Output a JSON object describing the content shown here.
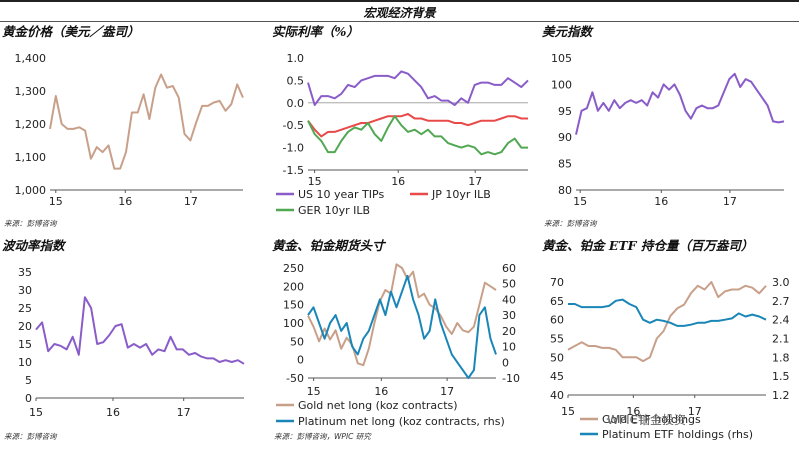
{
  "header": {
    "title": "宏观经济背景"
  },
  "watermark": "WPIC铂金投资",
  "chart_data": [
    {
      "id": "gold",
      "type": "line",
      "title": "黄金价格（美元／盎司）",
      "source": "来源：彭博咨询",
      "x_ticks": [
        "15",
        "16",
        "17"
      ],
      "ylim": [
        1000,
        1400
      ],
      "y_ticks": [
        "1,000",
        "1,100",
        "1,200",
        "1,300",
        "1,400"
      ],
      "y_tick_values": [
        1000,
        1100,
        1200,
        1300,
        1400
      ],
      "colors": [
        "#c8a08a"
      ],
      "series": [
        {
          "values": [
            1185,
            1285,
            1200,
            1185,
            1185,
            1190,
            1180,
            1095,
            1130,
            1115,
            1135,
            1065,
            1065,
            1115,
            1235,
            1235,
            1290,
            1215,
            1310,
            1350,
            1310,
            1315,
            1280,
            1170,
            1150,
            1205,
            1255,
            1255,
            1265,
            1270,
            1240,
            1260,
            1320,
            1280
          ]
        }
      ]
    },
    {
      "id": "rates",
      "type": "line",
      "title": "实际利率（%）",
      "ylim": [
        -1.5,
        1.0
      ],
      "x_ticks": [
        "15",
        "16",
        "17"
      ],
      "y_ticks": [
        "1.0",
        "0.5",
        "0.0",
        "-0.5",
        "-1.0",
        "-1.5"
      ],
      "y_tick_values": [
        1.0,
        0.5,
        0.0,
        -0.5,
        -1.0,
        -1.5
      ],
      "colors": [
        "#8a5cc8",
        "#e84a4a",
        "#52a852"
      ],
      "series": [
        {
          "name": "US 10 year TIPs",
          "values": [
            0.45,
            -0.05,
            0.15,
            0.15,
            0.1,
            0.2,
            0.4,
            0.35,
            0.5,
            0.55,
            0.6,
            0.6,
            0.6,
            0.55,
            0.7,
            0.65,
            0.5,
            0.35,
            0.1,
            0.15,
            0.05,
            0.05,
            -0.05,
            0.1,
            0.0,
            0.4,
            0.45,
            0.45,
            0.4,
            0.4,
            0.55,
            0.45,
            0.35,
            0.5
          ]
        },
        {
          "name": "JP 10yr ILB",
          "values": [
            -0.4,
            -0.6,
            -0.75,
            -0.65,
            -0.65,
            -0.6,
            -0.55,
            -0.5,
            -0.45,
            -0.45,
            -0.4,
            -0.35,
            -0.3,
            -0.3,
            -0.3,
            -0.25,
            -0.35,
            -0.35,
            -0.4,
            -0.4,
            -0.4,
            -0.4,
            -0.45,
            -0.45,
            -0.5,
            -0.45,
            -0.4,
            -0.4,
            -0.4,
            -0.35,
            -0.3,
            -0.3,
            -0.35,
            -0.35
          ]
        },
        {
          "name": "GER 10yr ILB",
          "values": [
            -0.4,
            -0.7,
            -0.85,
            -1.1,
            -1.1,
            -0.85,
            -0.65,
            -0.55,
            -0.6,
            -0.45,
            -0.7,
            -0.85,
            -0.55,
            -0.3,
            -0.5,
            -0.65,
            -0.6,
            -0.7,
            -0.6,
            -0.75,
            -0.75,
            -0.9,
            -0.95,
            -1.0,
            -0.95,
            -1.0,
            -1.15,
            -1.1,
            -1.15,
            -1.1,
            -0.9,
            -0.8,
            -1.0,
            -1.0
          ]
        }
      ]
    },
    {
      "id": "dxy",
      "type": "line",
      "title": "美元指数",
      "source": "来源：彭博咨询",
      "ylim": [
        80,
        105
      ],
      "x_ticks": [
        "15",
        "16",
        "17"
      ],
      "y_ticks": [
        "105",
        "100",
        "95",
        "90",
        "85",
        "80"
      ],
      "y_tick_values": [
        105,
        100,
        95,
        90,
        85,
        80
      ],
      "colors": [
        "#8a5cc8"
      ],
      "series": [
        {
          "values": [
            90.5,
            95.0,
            95.5,
            98.5,
            95.0,
            96.5,
            95.0,
            97.0,
            95.5,
            96.5,
            97.0,
            96.5,
            97.0,
            96.0,
            98.5,
            97.5,
            100.0,
            99.0,
            100.0,
            98.0,
            95.0,
            93.5,
            95.5,
            96.0,
            95.5,
            95.5,
            96.0,
            98.5,
            101.0,
            102.0,
            99.5,
            101.0,
            100.5,
            99.0,
            97.5,
            96.0,
            93.0,
            92.8,
            93.0
          ]
        }
      ]
    },
    {
      "id": "vol",
      "type": "line",
      "title": "波动率指数",
      "source": "来源：彭博咨询",
      "ylim": [
        0,
        35
      ],
      "x_ticks": [
        "15",
        "16",
        "17"
      ],
      "y_ticks": [
        "35",
        "30",
        "25",
        "20",
        "15",
        "10",
        "5",
        "0"
      ],
      "y_tick_values": [
        35,
        30,
        25,
        20,
        15,
        10,
        5,
        0
      ],
      "colors": [
        "#8a5cc8"
      ],
      "series": [
        {
          "values": [
            19,
            21,
            13,
            15,
            14.5,
            13.5,
            17,
            12,
            28,
            25,
            15,
            15.5,
            17.5,
            20,
            20.5,
            14,
            15,
            14,
            15,
            12,
            13.5,
            13,
            17,
            13.5,
            13.5,
            12,
            12.5,
            11.5,
            11,
            11,
            10,
            10.5,
            10,
            10.5,
            9.5
          ]
        }
      ]
    },
    {
      "id": "futures",
      "type": "line",
      "title": "黄金、铂金期货头寸",
      "source": "来源：彭博咨询，WPIC 研究",
      "ylim": [
        -50,
        250
      ],
      "ylim_right": [
        -10,
        60
      ],
      "x_ticks": [
        "15",
        "16",
        "17"
      ],
      "y_ticks": [
        "250",
        "200",
        "150",
        "100",
        "50",
        "0",
        "-50"
      ],
      "y_tick_values": [
        250,
        200,
        150,
        100,
        50,
        0,
        -50
      ],
      "y_ticks_right": [
        "60",
        "50",
        "40",
        "30",
        "20",
        "10",
        "0",
        "-10"
      ],
      "y_tick_values_right": [
        60,
        50,
        40,
        30,
        20,
        10,
        0,
        -10
      ],
      "colors": [
        "#c8a08a",
        "#1a86b8"
      ],
      "series": [
        {
          "name": "Gold net long (koz contracts)",
          "axis": "left",
          "values": [
            120,
            90,
            50,
            85,
            55,
            80,
            30,
            60,
            40,
            -10,
            -15,
            30,
            100,
            160,
            190,
            180,
            260,
            250,
            220,
            240,
            170,
            180,
            150,
            140,
            120,
            90,
            70,
            100,
            80,
            75,
            90,
            150,
            210,
            200,
            190
          ]
        },
        {
          "name": "Platinum net long (koz contracts, rhs)",
          "axis": "right",
          "values": [
            30,
            35,
            25,
            15,
            25,
            30,
            20,
            25,
            10,
            5,
            15,
            20,
            30,
            40,
            30,
            45,
            35,
            45,
            55,
            40,
            30,
            15,
            20,
            40,
            25,
            15,
            5,
            0,
            -5,
            -10,
            -5,
            30,
            35,
            15,
            5
          ]
        }
      ]
    },
    {
      "id": "etf",
      "type": "line",
      "title": "黄金、铂金 ETF 持仓量（百万盎司）",
      "ylim": [
        40,
        70
      ],
      "ylim_right": [
        1.2,
        3.0
      ],
      "x_ticks": [
        "15",
        "16",
        "17"
      ],
      "y_ticks": [
        "70",
        "65",
        "60",
        "55",
        "50",
        "45",
        "40"
      ],
      "y_tick_values": [
        70,
        65,
        60,
        55,
        50,
        45,
        40
      ],
      "y_ticks_right": [
        "3.0",
        "2.7",
        "2.4",
        "2.1",
        "1.8",
        "1.5",
        "1.2"
      ],
      "y_tick_values_right": [
        3.0,
        2.7,
        2.4,
        2.1,
        1.8,
        1.5,
        1.2
      ],
      "colors": [
        "#c8a08a",
        "#1a86b8"
      ],
      "series": [
        {
          "name": "Gold ETF holdings",
          "axis": "left",
          "values": [
            52,
            53,
            54,
            53,
            53,
            52.5,
            52.5,
            52,
            50,
            50,
            50,
            49,
            50,
            55,
            57,
            61,
            63,
            64,
            67,
            69,
            68,
            70,
            66,
            67.5,
            68,
            68,
            69,
            68.5,
            67,
            69
          ]
        },
        {
          "name": "Platinum ETF holdings (rhs)",
          "axis": "right",
          "values": [
            2.65,
            2.65,
            2.6,
            2.6,
            2.6,
            2.6,
            2.62,
            2.7,
            2.72,
            2.65,
            2.6,
            2.4,
            2.35,
            2.4,
            2.38,
            2.35,
            2.3,
            2.3,
            2.32,
            2.35,
            2.35,
            2.38,
            2.38,
            2.4,
            2.42,
            2.5,
            2.45,
            2.48,
            2.45,
            2.4
          ]
        }
      ]
    }
  ]
}
